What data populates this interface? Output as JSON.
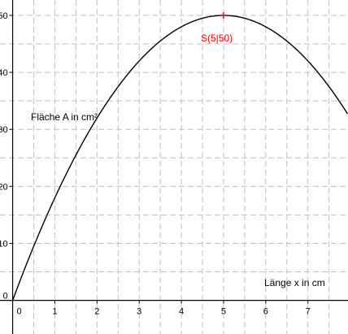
{
  "chart_data": {
    "type": "line",
    "xlabel": "Länge x in cm",
    "ylabel": "Fläche A in cm²",
    "xlim": [
      -0.3,
      7.95
    ],
    "ylim": [
      -5.9,
      52.7
    ],
    "x_ticks": [
      0,
      1,
      2,
      3,
      4,
      5,
      6,
      7
    ],
    "x_tick_labels": [
      "0",
      "1",
      "2",
      "3",
      "4",
      "5",
      "6",
      "7"
    ],
    "y_ticks": [
      0,
      10,
      20,
      30,
      40,
      50
    ],
    "y_tick_labels": [
      "0",
      "10",
      "20",
      "30",
      "40",
      "50"
    ],
    "grid": true,
    "grid_style": "dashed",
    "series": [
      {
        "function": "A(x) = 20x - 2x^2",
        "x": [
          0,
          0.5,
          1,
          1.5,
          2,
          2.5,
          3,
          3.5,
          4,
          4.5,
          5,
          5.5,
          6,
          6.5,
          7,
          7.5,
          7.95
        ],
        "y": [
          0,
          9.5,
          18,
          25.5,
          32,
          37.5,
          42,
          45.5,
          48,
          49.5,
          50,
          49.5,
          48,
          45.5,
          42,
          37.5,
          32.6
        ],
        "color": "#000000"
      }
    ],
    "annotations": [
      {
        "text": "S(5|50)",
        "x": 5,
        "y": 50,
        "color": "#ff0000"
      }
    ]
  }
}
